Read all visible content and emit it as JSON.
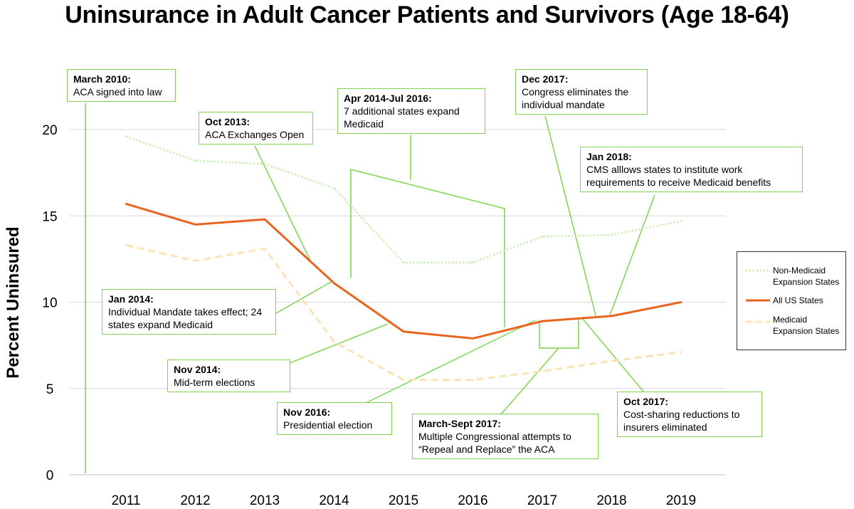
{
  "chart_data": {
    "type": "line",
    "title": "Uninsurance in Adult Cancer Patients and Survivors (Age 18-64)",
    "xlabel": "",
    "ylabel": "Percent Uninsured",
    "x": [
      2011,
      2012,
      2013,
      2014,
      2015,
      2016,
      2017,
      2018,
      2019
    ],
    "x_tick_labels": [
      "2011",
      "2012",
      "2013",
      "2014",
      "2015",
      "2016",
      "2017",
      "2018",
      "2019"
    ],
    "y_ticks": [
      0,
      5,
      10,
      15,
      20
    ],
    "y_tick_labels": [
      "0",
      "5",
      "10",
      "15",
      "20"
    ],
    "ylim": [
      0,
      20
    ],
    "grid": "horizontal",
    "legend_position": "right",
    "series": [
      {
        "name": "Non-Medicaid Expansion States",
        "color": "#c8eeb0",
        "style": "dotted",
        "values": [
          19.6,
          18.2,
          18.0,
          16.6,
          12.3,
          12.3,
          13.8,
          13.9,
          14.7
        ]
      },
      {
        "name": "All US States",
        "color": "#e8641f",
        "style": "solid",
        "values": [
          15.7,
          14.5,
          14.8,
          11.1,
          8.3,
          7.9,
          8.9,
          9.2,
          10.0
        ]
      },
      {
        "name": "Medicaid Expansion States",
        "color": "#fbe3b3",
        "style": "dashed",
        "values": [
          13.3,
          12.4,
          13.1,
          7.7,
          5.5,
          5.5,
          6.0,
          6.6,
          7.1
        ]
      }
    ],
    "annotations": [
      {
        "date": "March 2010:",
        "text": "ACA signed into law"
      },
      {
        "date": "Oct 2013:",
        "text": "ACA Exchanges Open"
      },
      {
        "date": "Apr 2014-Jul 2016:",
        "text": "7 additional states expand Medicaid"
      },
      {
        "date": "Dec 2017:",
        "text": "Congress eliminates the individual mandate"
      },
      {
        "date": "Jan 2018:",
        "text": "CMS alllows states to institute work requirements to receive Medicaid benefits"
      },
      {
        "date": "Jan 2014:",
        "text": "Individual Mandate takes effect; 24 states expand Medicaid"
      },
      {
        "date": "Nov 2014:",
        "text": "Mid-term elections"
      },
      {
        "date": "Nov 2016:",
        "text": "Presidential election"
      },
      {
        "date": "March-Sept 2017:",
        "text": "Multiple Congressional attempts to “Repeal and Replace” the ACA"
      },
      {
        "date": "Oct 2017:",
        "text": "Cost-sharing reductions to insurers eliminated"
      }
    ]
  },
  "legend": {
    "items": [
      {
        "label": "Non-Medicaid Expansion States"
      },
      {
        "label": "All US States"
      },
      {
        "label": "Medicaid Expansion States"
      }
    ]
  }
}
